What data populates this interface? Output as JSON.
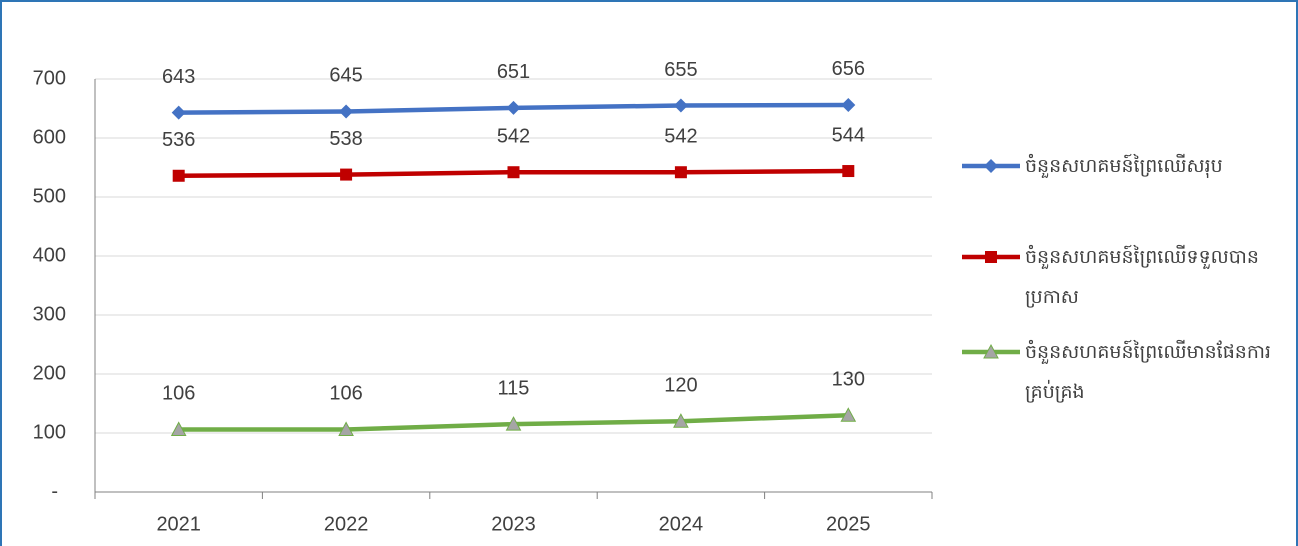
{
  "chart_data": {
    "type": "line",
    "categories": [
      "2021",
      "2022",
      "2023",
      "2024",
      "2025"
    ],
    "series": [
      {
        "name": "ចំនួនសហគមន៍ព្រៃឈើសរុប",
        "color": "#4472c4",
        "marker": "diamond",
        "values": [
          643,
          645,
          651,
          655,
          656
        ]
      },
      {
        "name": "ចំនួនសហគមន៍ព្រៃឈើទទួលបានប្រកាស",
        "color": "#c00000",
        "marker": "square",
        "values": [
          536,
          538,
          542,
          542,
          544
        ]
      },
      {
        "name": "ចំនួនសហគមន៍ព្រៃឈើមានផែនការគ្រប់គ្រង",
        "color": "#70ad47",
        "marker": "triangle",
        "values": [
          106,
          106,
          115,
          120,
          130
        ]
      }
    ],
    "ylim": [
      0,
      700
    ],
    "yticks": [
      {
        "value": 0,
        "label": "-"
      },
      100,
      200,
      300,
      400,
      500,
      600,
      700
    ],
    "grid": true,
    "legend": "right"
  }
}
